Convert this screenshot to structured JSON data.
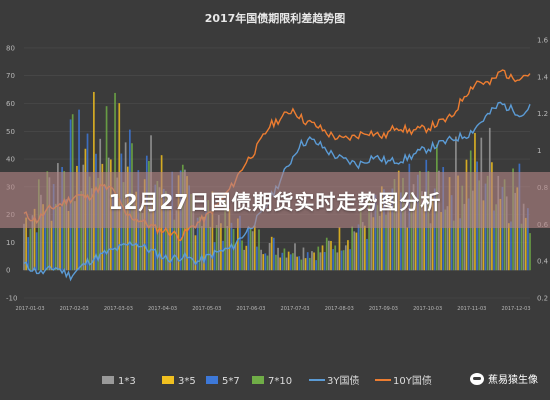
{
  "chart_data": {
    "type": "mixed-bar-line",
    "title": "2017年国债期限利差趋势图",
    "y_ticks": [
      "80",
      "70",
      "60",
      "50",
      "40",
      "30",
      "20",
      "10",
      "0",
      "-10"
    ],
    "ylim": [
      -10,
      85
    ],
    "y2_ticks": [
      "1.6",
      "1.4",
      "1.2",
      "1",
      "0.8",
      "0.6",
      "0.4",
      "0.2"
    ],
    "x_ticks": [
      "2017-01-03",
      "2017-02-03",
      "2017-03-03",
      "2017-04-03",
      "2017-05-03",
      "2017-06-03",
      "2017-07-03",
      "2017-08-03",
      "2017-09-03",
      "2017-10-03",
      "2017-11-03",
      "2017-12-03"
    ],
    "x_count": 240,
    "legend": [
      {
        "name": "1*3",
        "color": "#9a9a9a",
        "kind": "bar"
      },
      {
        "name": "3*5",
        "color": "#f0c020",
        "kind": "bar"
      },
      {
        "name": "5*7",
        "color": "#3d78d8",
        "kind": "bar"
      },
      {
        "name": "7*10",
        "color": "#70ad47",
        "kind": "bar"
      },
      {
        "name": "3Y国债",
        "color": "#5b9bd5",
        "kind": "line"
      },
      {
        "name": "10Y国债",
        "color": "#ed7d31",
        "kind": "line"
      }
    ],
    "line_3y": [
      [
        0,
        2
      ],
      [
        8,
        -1
      ],
      [
        15,
        1
      ],
      [
        22,
        -2
      ],
      [
        30,
        3
      ],
      [
        38,
        6
      ],
      [
        45,
        8
      ],
      [
        52,
        10
      ],
      [
        60,
        7
      ],
      [
        68,
        4
      ],
      [
        75,
        5
      ],
      [
        82,
        3
      ],
      [
        90,
        6
      ],
      [
        98,
        8
      ],
      [
        105,
        14
      ],
      [
        112,
        20
      ],
      [
        118,
        28
      ],
      [
        125,
        38
      ],
      [
        130,
        45
      ],
      [
        135,
        47
      ],
      [
        140,
        45
      ],
      [
        145,
        42
      ],
      [
        150,
        40
      ],
      [
        158,
        38
      ],
      [
        165,
        41
      ],
      [
        172,
        39
      ],
      [
        180,
        40
      ],
      [
        188,
        43
      ],
      [
        195,
        45
      ],
      [
        202,
        47
      ],
      [
        210,
        49
      ],
      [
        218,
        55
      ],
      [
        225,
        60
      ],
      [
        230,
        58
      ],
      [
        236,
        56
      ],
      [
        240,
        61
      ]
    ],
    "line_10y": [
      [
        0,
        20
      ],
      [
        6,
        18
      ],
      [
        12,
        22
      ],
      [
        18,
        24
      ],
      [
        25,
        27
      ],
      [
        30,
        26
      ],
      [
        36,
        30
      ],
      [
        42,
        29
      ],
      [
        48,
        20
      ],
      [
        55,
        18
      ],
      [
        62,
        15
      ],
      [
        68,
        14
      ],
      [
        74,
        12
      ],
      [
        80,
        16
      ],
      [
        86,
        19
      ],
      [
        92,
        24
      ],
      [
        98,
        30
      ],
      [
        104,
        38
      ],
      [
        110,
        44
      ],
      [
        116,
        52
      ],
      [
        122,
        55
      ],
      [
        127,
        58
      ],
      [
        132,
        54
      ],
      [
        138,
        52
      ],
      [
        144,
        49
      ],
      [
        150,
        47
      ],
      [
        156,
        48
      ],
      [
        162,
        50
      ],
      [
        170,
        48
      ],
      [
        176,
        52
      ],
      [
        182,
        50
      ],
      [
        190,
        51
      ],
      [
        196,
        53
      ],
      [
        202,
        55
      ],
      [
        208,
        63
      ],
      [
        214,
        68
      ],
      [
        220,
        67
      ],
      [
        226,
        72
      ],
      [
        230,
        69
      ],
      [
        235,
        70
      ],
      [
        240,
        71
      ]
    ],
    "bar_envelope": [
      [
        0,
        25
      ],
      [
        20,
        55
      ],
      [
        40,
        70
      ],
      [
        60,
        50
      ],
      [
        80,
        35
      ],
      [
        100,
        22
      ],
      [
        120,
        12
      ],
      [
        140,
        10
      ],
      [
        160,
        25
      ],
      [
        180,
        38
      ],
      [
        200,
        48
      ],
      [
        220,
        55
      ],
      [
        240,
        35
      ]
    ]
  },
  "banner": {
    "title": "12月27日国债期货实时走势图分析"
  },
  "watermark": {
    "text": "蕉易猿生像"
  }
}
